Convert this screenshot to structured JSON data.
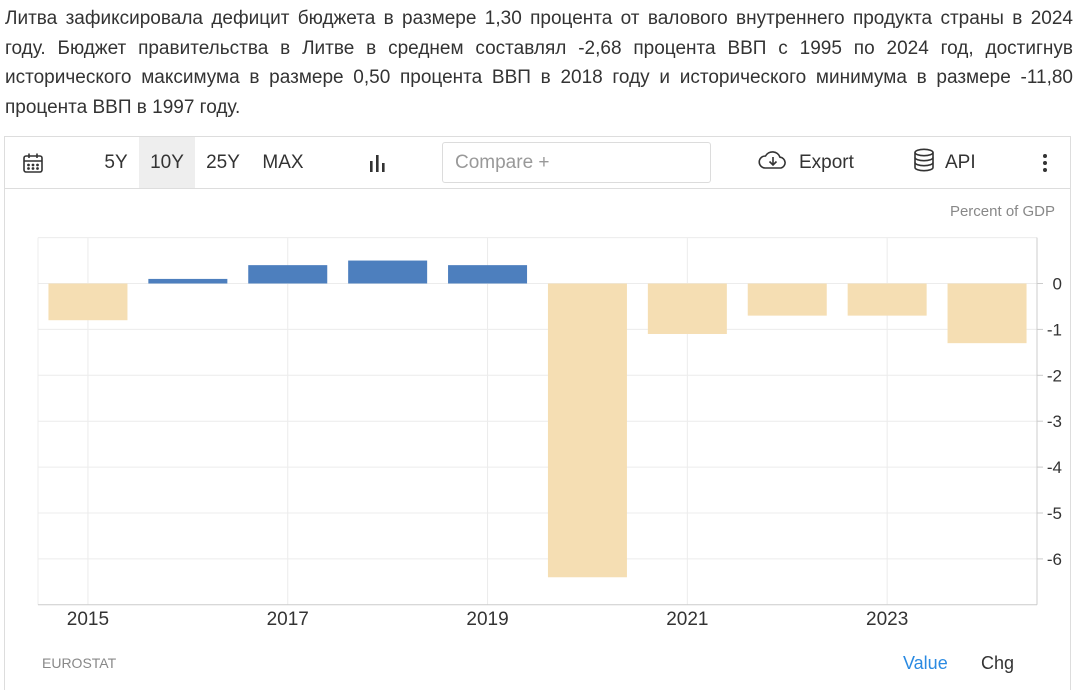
{
  "description": "Литва зафиксировала дефицит бюджета в размере 1,30 процента от валового внутреннего продукта страны в 2024 году. Бюджет правительства в Литве в среднем составлял -2,68 процента ВВП с 1995 по 2024 год, достигнув исторического максимума в размере 0,50 процента ВВП в 2018 году и исторического минимума в размере -11,80 процента ВВП в 1997 году.",
  "toolbar": {
    "calendar_icon": "calendar-icon",
    "ranges": [
      "5Y",
      "10Y",
      "25Y",
      "MAX"
    ],
    "active_range": "10Y",
    "chart_type_icon": "bar-chart-icon",
    "compare_placeholder": "Compare +",
    "export_label": "Export",
    "export_icon": "cloud-download-icon",
    "api_label": "API",
    "api_icon": "database-icon",
    "more_icon": "vertical-dots-icon"
  },
  "chart_data": {
    "type": "bar",
    "unit": "Percent of GDP",
    "categories": [
      "2015",
      "2016",
      "2017",
      "2018",
      "2019",
      "2020",
      "2021",
      "2022",
      "2023",
      "2024"
    ],
    "values": [
      -0.8,
      0.1,
      0.4,
      0.5,
      0.4,
      -6.4,
      -1.1,
      -0.7,
      -0.7,
      -1.3
    ],
    "x_tick_labels": [
      "2015",
      "2017",
      "2019",
      "2021",
      "2023"
    ],
    "y_ticks": [
      0,
      -1,
      -2,
      -3,
      -4,
      -5,
      -6
    ],
    "ylim": [
      -7,
      1
    ],
    "grid": true,
    "colors": {
      "positive": "#4d7fbe",
      "negative": "#f5deb3"
    }
  },
  "footer": {
    "source": "EUROSTAT",
    "value_label": "Value",
    "chg_label": "Chg"
  }
}
